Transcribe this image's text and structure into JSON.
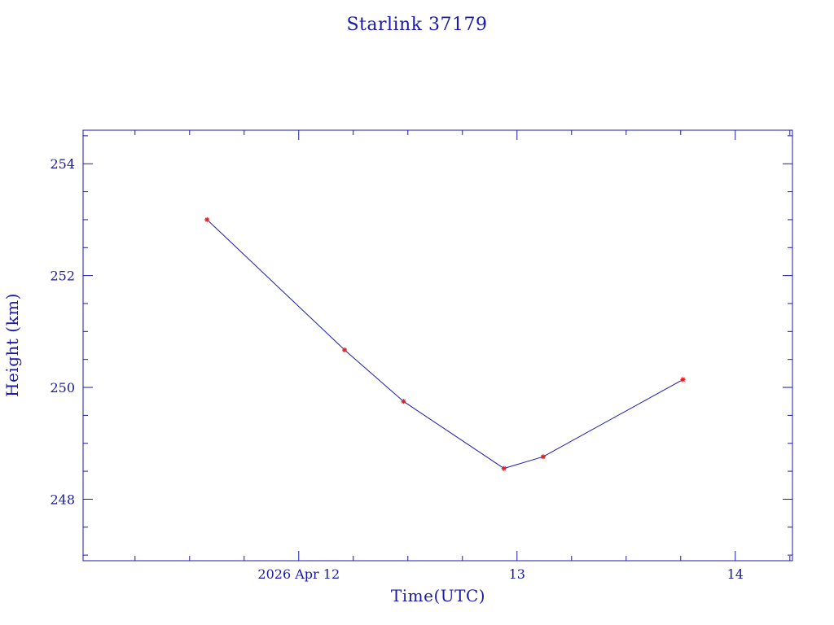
{
  "chart_data": {
    "type": "line",
    "title": "Starlink 37179",
    "xlabel": "Time(UTC)",
    "ylabel": "Height (km)",
    "x_unit": "days (April 2026, UTC)",
    "xlim": [
      11.012,
      14.262
    ],
    "ylim": [
      246.9,
      254.6
    ],
    "x_major_ticks": [
      {
        "value": 12,
        "label": "2026 Apr 12"
      },
      {
        "value": 13,
        "label": "13"
      },
      {
        "value": 14,
        "label": "14"
      }
    ],
    "x_minor_step": 0.25,
    "y_major_ticks": [
      {
        "value": 248,
        "label": "248"
      },
      {
        "value": 250,
        "label": "250"
      },
      {
        "value": 252,
        "label": "252"
      },
      {
        "value": 254,
        "label": "254"
      }
    ],
    "y_minor_step": 0.5,
    "grid": false,
    "series": [
      {
        "line_color": "#1a1aa6",
        "marker_color": "#e02020",
        "points": [
          {
            "x": 11.58,
            "y": 253.0
          },
          {
            "x": 12.21,
            "y": 250.67
          },
          {
            "x": 12.48,
            "y": 249.75
          },
          {
            "x": 12.94,
            "y": 248.55
          },
          {
            "x": 13.12,
            "y": 248.76
          },
          {
            "x": 13.76,
            "y": 250.14
          }
        ]
      }
    ]
  }
}
